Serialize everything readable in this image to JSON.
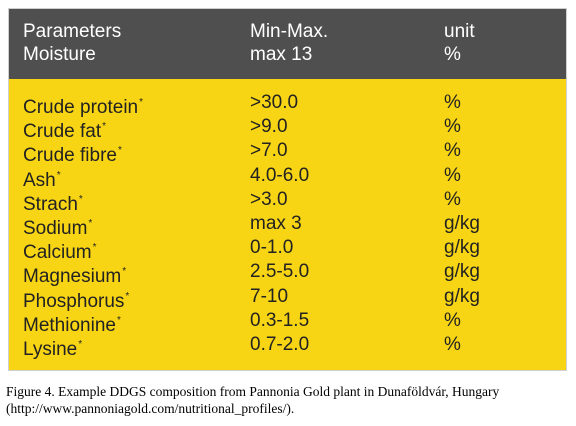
{
  "header": {
    "row1": {
      "param": "Parameters",
      "range": "Min-Max.",
      "unit": "unit"
    },
    "row2": {
      "param": "Moisture",
      "range": "max 13",
      "unit": "%"
    }
  },
  "rows": [
    {
      "param": "Crude protein",
      "mark": "*",
      "range": ">30.0",
      "unit": "%"
    },
    {
      "param": "Crude fat",
      "mark": "*",
      "range": ">9.0",
      "unit": "%"
    },
    {
      "param": "Crude fibre",
      "mark": "*",
      "range": ">7.0",
      "unit": "%"
    },
    {
      "param": "Ash",
      "mark": "*",
      "range": "4.0-6.0",
      "unit": "%"
    },
    {
      "param": "Strach",
      "mark": "*",
      "range": ">3.0",
      "unit": "%"
    },
    {
      "param": "Sodium",
      "mark": "*",
      "range": "max 3",
      "unit": "g/kg"
    },
    {
      "param": "Calcium",
      "mark": "*",
      "range": "0-1.0",
      "unit": "g/kg"
    },
    {
      "param": "Magnesium",
      "mark": "*",
      "range": "2.5-5.0",
      "unit": "g/kg"
    },
    {
      "param": "Phosphorus",
      "mark": "*",
      "range": "7-10",
      "unit": "g/kg"
    },
    {
      "param": "Methionine",
      "mark": "*",
      "range": "0.3-1.5",
      "unit": "%"
    },
    {
      "param": "Lysine",
      "mark": "*",
      "range": "0.7-2.0",
      "unit": "%"
    }
  ],
  "caption": "Figure 4.  Example DDGS composition from Pannonia Gold plant in Dunaföldvár, Hungary (http://www.pannoniagold.com/nutritional_profiles/).",
  "colors": {
    "header_bg": "#4f4f4f",
    "body_bg": "#f8d514",
    "header_text": "#ffffff",
    "body_text": "#222222"
  }
}
